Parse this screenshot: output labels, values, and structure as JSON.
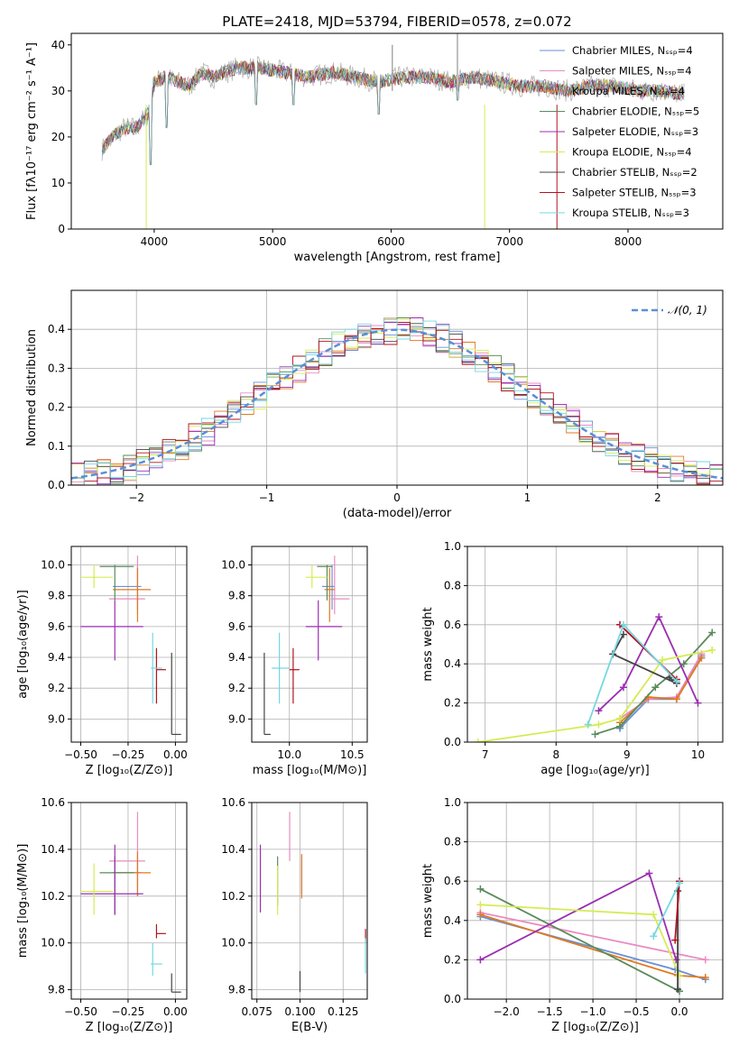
{
  "figure_title": "PLATE=2418, MJD=53794, FIBERID=0578, z=0.072",
  "series_colors": [
    "#6a8fd6",
    "#e98bc1",
    "#e07a1f",
    "#5a8a5a",
    "#9a2fb0",
    "#d4ec52",
    "#444444",
    "#b3121e",
    "#76d7e0"
  ],
  "gray_color": "#aaaaaa",
  "chart_data": [
    {
      "id": "spectrum",
      "type": "line",
      "title": "PLATE=2418, MJD=53794, FIBERID=0578, z=0.072",
      "xlabel": "wavelength [Angstrom, rest frame]",
      "ylabel": "Flux [fλ10⁻¹⁷ erg cm⁻² s⁻¹ A⁻¹]",
      "xlim": [
        3300,
        8800
      ],
      "ylim": [
        0,
        42.5
      ],
      "xticks": [
        4000,
        5000,
        6000,
        7000,
        8000
      ],
      "xticklabels": [
        "4000",
        "5000",
        "6000",
        "7000",
        "8000"
      ],
      "yticks": [
        0,
        10,
        20,
        30,
        40
      ],
      "yticklabels": [
        "0",
        "10",
        "20",
        "30",
        "40"
      ],
      "grid": false,
      "legend_position": "right",
      "data_x": [
        3550,
        3650,
        3750,
        3850,
        3950,
        4000,
        4100,
        4200,
        4300,
        4400,
        4500,
        4700,
        4900,
        5100,
        5300,
        5500,
        5700,
        5900,
        6100,
        6300,
        6500,
        6700,
        6900,
        7100,
        7300,
        7500,
        7700,
        7900,
        8100,
        8300,
        8500
      ],
      "data_y": [
        17,
        20,
        22,
        22,
        25,
        32,
        33,
        32,
        31,
        34,
        33,
        35,
        35,
        34,
        33,
        34,
        33,
        32,
        33,
        33,
        32,
        33,
        32,
        31,
        31,
        30,
        31,
        31,
        30,
        30,
        29
      ],
      "dips": [
        {
          "x": 3933,
          "y": 0
        },
        {
          "x": 3968,
          "y": 14
        },
        {
          "x": 4102,
          "y": 22
        },
        {
          "x": 4861,
          "y": 27
        },
        {
          "x": 5175,
          "y": 27
        },
        {
          "x": 5893,
          "y": 25
        },
        {
          "x": 6563,
          "y": 28
        },
        {
          "x": 6790,
          "y": 0
        },
        {
          "x": 7400,
          "y": 0
        }
      ],
      "spikes": [
        {
          "x": 6560,
          "y": 42.5
        },
        {
          "x": 6010,
          "y": 40
        }
      ],
      "legend": [
        "Chabrier MILES, Nₛₛₚ=4",
        "Salpeter MILES, Nₛₛₚ=4",
        "Kroupa MILES, Nₛₛₚ=4",
        "Chabrier ELODIE, Nₛₛₚ=5",
        "Salpeter ELODIE, Nₛₛₚ=3",
        "Kroupa ELODIE, Nₛₛₚ=4",
        "Chabrier STELIB, Nₛₛₚ=2",
        "Salpeter STELIB, Nₛₛₚ=3",
        "Kroupa STELIB, Nₛₛₚ=3"
      ]
    },
    {
      "id": "residuals",
      "type": "histogram",
      "xlabel": "(data-model)/error",
      "ylabel": "Normed distribution",
      "xlim": [
        -2.5,
        2.5
      ],
      "ylim": [
        0,
        0.5
      ],
      "xticks": [
        -2,
        -1,
        0,
        1,
        2
      ],
      "xticklabels": [
        "−2",
        "−1",
        "0",
        "1",
        "2"
      ],
      "yticks": [
        0,
        0.1,
        0.2,
        0.3,
        0.4
      ],
      "yticklabels": [
        "0.0",
        "0.1",
        "0.2",
        "0.3",
        "0.4"
      ],
      "grid": true,
      "bin_width": 0.1,
      "legend_label": "𝒩(0, 1)",
      "legend_position": "top-right"
    },
    {
      "id": "z-vs-age",
      "type": "errorbar",
      "xlabel": "Z [log₁₀(Z/Z⊙)]",
      "ylabel": "age  [log₁₀(age/yr)]",
      "xlim": [
        -0.55,
        0.06
      ],
      "ylim": [
        8.85,
        10.12
      ],
      "xticks": [
        -0.5,
        -0.25,
        0.0
      ],
      "xticklabels": [
        "−0.50",
        "−0.25",
        "0.00"
      ],
      "yticks": [
        9.0,
        9.2,
        9.4,
        9.6,
        9.8,
        10.0
      ],
      "yticklabels": [
        "9.0",
        "9.2",
        "9.4",
        "9.6",
        "9.8",
        "10.0"
      ],
      "grid": true
    },
    {
      "id": "mass-vs-age",
      "type": "errorbar",
      "xlabel": "mass [log₁₀(M/M⊙)]",
      "xlim": [
        9.7,
        10.62
      ],
      "ylim": [
        8.85,
        10.12
      ],
      "xticks": [
        10.0,
        10.5
      ],
      "xticklabels": [
        "10.0",
        "10.5"
      ],
      "yticks": [
        9.0,
        9.2,
        9.4,
        9.6,
        9.8,
        10.0
      ],
      "yticklabels": [
        "9.0",
        "9.2",
        "9.4",
        "9.6",
        "9.8",
        "10.0"
      ],
      "grid": true
    },
    {
      "id": "age-mass-weight",
      "type": "line",
      "xlabel": "age  [log₁₀(age/yr)]",
      "ylabel": "mass weight",
      "xlim": [
        6.75,
        10.35
      ],
      "ylim": [
        0,
        1
      ],
      "xticks": [
        7,
        8,
        9,
        10
      ],
      "xticklabels": [
        "7",
        "8",
        "9",
        "10"
      ],
      "yticks": [
        0,
        0.2,
        0.4,
        0.6,
        0.8,
        1.0
      ],
      "yticklabels": [
        "0.0",
        "0.2",
        "0.4",
        "0.6",
        "0.8",
        "1.0"
      ],
      "grid": true
    },
    {
      "id": "z-vs-mass",
      "type": "errorbar",
      "xlabel": "Z [log₁₀(Z/Z⊙)]",
      "ylabel": "mass [log₁₀(M/M⊙)]",
      "xlim": [
        -0.55,
        0.06
      ],
      "ylim": [
        9.76,
        10.6
      ],
      "xticks": [
        -0.5,
        -0.25,
        0.0
      ],
      "xticklabels": [
        "−0.50",
        "−0.25",
        "0.00"
      ],
      "yticks": [
        9.8,
        10.0,
        10.2,
        10.4,
        10.6
      ],
      "yticklabels": [
        "9.8",
        "10.0",
        "10.2",
        "10.4",
        "10.6"
      ],
      "grid": true
    },
    {
      "id": "ebv-vs-mass",
      "type": "errorbar",
      "xlabel": "E(B-V)",
      "xlim": [
        0.072,
        0.139
      ],
      "ylim": [
        9.76,
        10.6
      ],
      "xticks": [
        0.075,
        0.1,
        0.125
      ],
      "xticklabels": [
        "0.075",
        "0.100",
        "0.125"
      ],
      "yticks": [
        9.8,
        10.0,
        10.2,
        10.4,
        10.6
      ],
      "yticklabels": [
        "9.8",
        "10.0",
        "10.2",
        "10.4",
        "10.6"
      ],
      "grid": true
    },
    {
      "id": "z-mass-weight",
      "type": "line",
      "xlabel": "Z [log₁₀(Z/Z⊙)]",
      "ylabel": "mass weight",
      "xlim": [
        -2.45,
        0.5
      ],
      "ylim": [
        0,
        1
      ],
      "xticks": [
        -2.0,
        -1.5,
        -1.0,
        -0.5,
        0.0
      ],
      "xticklabels": [
        "−2.0",
        "−1.5",
        "−1.0",
        "−0.5",
        "0.0"
      ],
      "yticks": [
        0,
        0.2,
        0.4,
        0.6,
        0.8,
        1.0
      ],
      "yticklabels": [
        "0.0",
        "0.2",
        "0.4",
        "0.6",
        "0.8",
        "1.0"
      ],
      "grid": true
    }
  ],
  "model_fits": [
    {
      "z": -0.2,
      "z_err": [
        -0.33,
        -0.18
      ],
      "age": 9.86,
      "age_err": [
        9.71,
        10.0
      ],
      "mass": 10.3,
      "mass_err": [
        10.2,
        10.37
      ],
      "mass_lo": 10.12,
      "mass_hi": 10.37,
      "mass_age": 10.34,
      "mass_age_err": [
        10.26,
        10.36
      ],
      "ebv": 0.101,
      "ebv_err": [
        10.21,
        10.37
      ]
    },
    {
      "z": -0.2,
      "z_err": [
        -0.35,
        -0.16
      ],
      "age": 9.78,
      "age_err": [
        9.68,
        10.06
      ],
      "mass": 10.35,
      "mass_err": [
        10.24,
        10.56
      ],
      "mass_age": 10.36,
      "mass_age_err": [
        10.33,
        10.48
      ],
      "ebv": 0.094,
      "ebv_err": [
        10.35,
        10.56
      ]
    },
    {
      "z": -0.2,
      "z_err": [
        -0.33,
        -0.13
      ],
      "age": 9.84,
      "age_err": [
        9.63,
        9.98
      ],
      "mass": 10.3,
      "mass_err": [
        10.2,
        10.39
      ],
      "mass_age": 10.32,
      "mass_age_err": [
        10.28,
        10.36
      ],
      "ebv": 0.101,
      "ebv_err": [
        10.19,
        10.38
      ]
    },
    {
      "z": -0.32,
      "z_err": [
        -0.4,
        -0.22
      ],
      "age": 9.99,
      "age_err": [
        9.77,
        10.0
      ],
      "mass": 10.3,
      "mass_err": [
        10.12,
        10.37
      ],
      "mass_age": 10.3,
      "mass_age_err": [
        10.22,
        10.34
      ],
      "ebv": 0.087,
      "ebv_err": [
        10.16,
        10.37
      ]
    },
    {
      "z": -0.32,
      "z_err": [
        -0.5,
        -0.17
      ],
      "age": 9.6,
      "age_err": [
        9.38,
        9.77
      ],
      "mass": 10.21,
      "mass_err": [
        10.12,
        10.42
      ],
      "mass_age": 10.23,
      "mass_age_err": [
        10.13,
        10.42
      ],
      "ebv": 0.077,
      "ebv_err": [
        10.13,
        10.42
      ]
    },
    {
      "z": -0.43,
      "z_err": [
        -0.5,
        -0.33
      ],
      "age": 9.92,
      "age_err": [
        9.85,
        10.0
      ],
      "mass": 10.22,
      "mass_err": [
        10.12,
        10.34
      ],
      "mass_age": 10.18,
      "mass_age_err": [
        10.13,
        10.3
      ],
      "ebv": 0.087,
      "ebv_err": [
        10.12,
        10.33
      ]
    },
    {
      "z": -0.02,
      "z_err": [
        -0.02,
        0.03
      ],
      "age": 8.9,
      "age_err": [
        8.9,
        9.43
      ],
      "mass": 9.79,
      "mass_err": [
        9.79,
        9.87
      ],
      "mass_age": 9.8,
      "mass_age_err": [
        9.8,
        9.85
      ],
      "ebv": 0.1,
      "ebv_err": [
        9.79,
        9.88
      ]
    },
    {
      "z": -0.1,
      "z_err": [
        -0.1,
        -0.05
      ],
      "age": 9.32,
      "age_err": [
        9.1,
        9.46
      ],
      "mass": 10.04,
      "mass_err": [
        10.02,
        10.08
      ],
      "mass_age": 10.03,
      "mass_age_err": [
        10.0,
        10.08
      ],
      "ebv": 0.138,
      "ebv_err": [
        10.0,
        10.06
      ]
    },
    {
      "z": -0.12,
      "z_err": [
        -0.13,
        -0.07
      ],
      "age": 9.33,
      "age_err": [
        9.1,
        9.56
      ],
      "mass": 9.91,
      "mass_err": [
        9.86,
        10.0
      ],
      "mass_age": 9.92,
      "mass_age_err": [
        9.86,
        10.0
      ],
      "ebv": 0.138,
      "ebv_err": [
        9.87,
        10.02
      ]
    }
  ],
  "age_weights": [
    [
      [
        8.9,
        0.07
      ],
      [
        9.3,
        0.22
      ],
      [
        9.7,
        0.22
      ],
      [
        10.05,
        0.44
      ]
    ],
    [
      [
        8.9,
        0.12
      ],
      [
        9.3,
        0.22
      ],
      [
        9.7,
        0.23
      ],
      [
        10.05,
        0.45
      ]
    ],
    [
      [
        8.9,
        0.1
      ],
      [
        9.3,
        0.23
      ],
      [
        9.7,
        0.22
      ],
      [
        10.05,
        0.43
      ]
    ],
    [
      [
        8.55,
        0.04
      ],
      [
        8.9,
        0.08
      ],
      [
        9.4,
        0.28
      ],
      [
        9.8,
        0.4
      ],
      [
        10.2,
        0.56
      ]
    ],
    [
      [
        8.6,
        0.16
      ],
      [
        8.95,
        0.28
      ],
      [
        9.45,
        0.64
      ],
      [
        10.0,
        0.2
      ]
    ],
    [
      [
        6.9,
        0.0
      ],
      [
        8.6,
        0.09
      ],
      [
        8.9,
        0.12
      ],
      [
        9.5,
        0.42
      ],
      [
        10.2,
        0.47
      ]
    ],
    [
      [
        8.95,
        0.55
      ],
      [
        8.8,
        0.45
      ],
      [
        9.7,
        0.3
      ],
      [
        9.6,
        0.33
      ]
    ],
    [
      [
        8.9,
        0.6
      ],
      [
        9.7,
        0.32
      ]
    ],
    [
      [
        8.45,
        0.09
      ],
      [
        8.95,
        0.6
      ],
      [
        9.7,
        0.31
      ]
    ]
  ],
  "z_weights": [
    [
      [
        -2.3,
        0.42
      ],
      [
        -0.05,
        0.15
      ],
      [
        0.3,
        0.1
      ]
    ],
    [
      [
        -2.3,
        0.44
      ],
      [
        0.3,
        0.2
      ]
    ],
    [
      [
        -2.3,
        0.43
      ],
      [
        -0.02,
        0.12
      ],
      [
        0.3,
        0.11
      ]
    ],
    [
      [
        -2.3,
        0.56
      ],
      [
        0.0,
        0.04
      ]
    ],
    [
      [
        -2.3,
        0.2
      ],
      [
        -0.35,
        0.64
      ],
      [
        -0.04,
        0.2
      ]
    ],
    [
      [
        -2.3,
        0.48
      ],
      [
        -0.3,
        0.43
      ],
      [
        0.0,
        0.12
      ]
    ],
    [
      [
        -0.02,
        0.55
      ],
      [
        -0.02,
        0.05
      ]
    ],
    [
      [
        0.0,
        0.6
      ],
      [
        -0.05,
        0.3
      ]
    ],
    [
      [
        0.0,
        0.59
      ],
      [
        -0.3,
        0.32
      ]
    ]
  ]
}
